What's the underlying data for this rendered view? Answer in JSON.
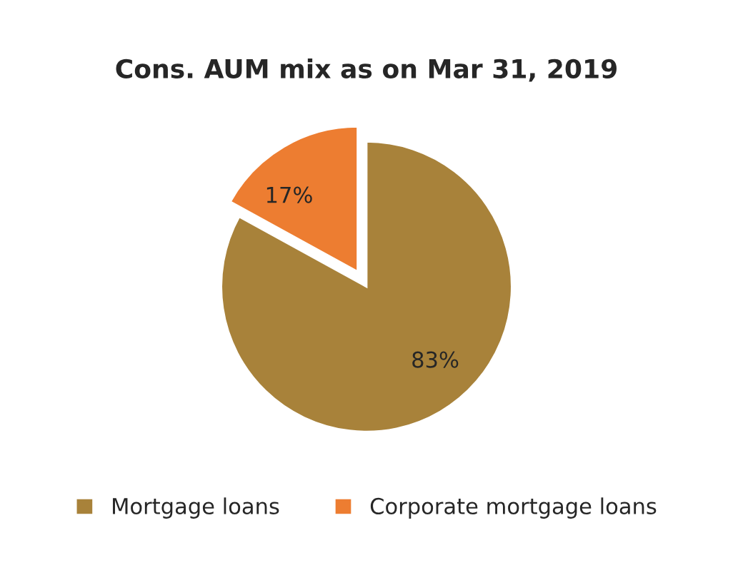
{
  "chart_data": {
    "type": "pie",
    "title": "Cons. AUM mix as on Mar 31, 2019",
    "categories": [
      "Mortgage loans",
      "Corporate mortgage loans"
    ],
    "values": [
      83,
      17
    ],
    "colors": [
      "#a8823a",
      "#ed7d31"
    ],
    "value_labels": [
      "83%",
      "17%"
    ],
    "legend": "bottom"
  }
}
